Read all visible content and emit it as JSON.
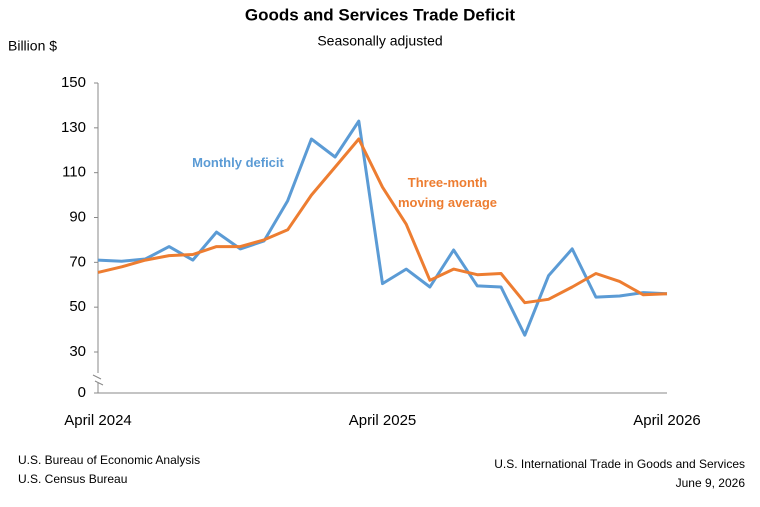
{
  "chart_data": {
    "type": "line",
    "title": "Goods and Services Trade Deficit",
    "subtitle": "Seasonally adjusted",
    "y_label": "Billion $",
    "categories": [
      "April 2024",
      null,
      null,
      null,
      null,
      null,
      null,
      null,
      null,
      null,
      null,
      null,
      "April 2025",
      null,
      null,
      null,
      null,
      null,
      null,
      null,
      null,
      null,
      null,
      null,
      "April 2026"
    ],
    "series": [
      {
        "name": "Monthly deficit",
        "color": "#5b9bd5",
        "values": [
          71,
          70.5,
          71.5,
          77,
          71,
          83.5,
          76,
          79.5,
          97.5,
          125,
          117,
          133,
          60.5,
          67,
          59,
          75.5,
          59.5,
          59,
          37.5,
          64,
          76,
          54.5,
          55,
          56.5,
          56
        ]
      },
      {
        "name": "Three-month moving average",
        "color": "#ed7d31",
        "values": [
          65.5,
          68,
          71,
          73,
          73.5,
          77,
          77,
          80,
          84.5,
          100,
          112.5,
          125,
          103.5,
          87,
          62,
          67,
          64.5,
          65,
          52,
          53.5,
          59,
          65,
          61.5,
          55.5,
          56
        ]
      }
    ],
    "ylim": [
      0,
      150
    ],
    "yticks": [
      0,
      30,
      50,
      70,
      90,
      110,
      130,
      150
    ],
    "axis_break": true,
    "grid": false,
    "sources": [
      "U.S. Bureau of Economic Analysis",
      "U.S. Census Bureau"
    ],
    "release": [
      "U.S. International Trade in Goods and Services",
      "June 9, 2026"
    ]
  }
}
